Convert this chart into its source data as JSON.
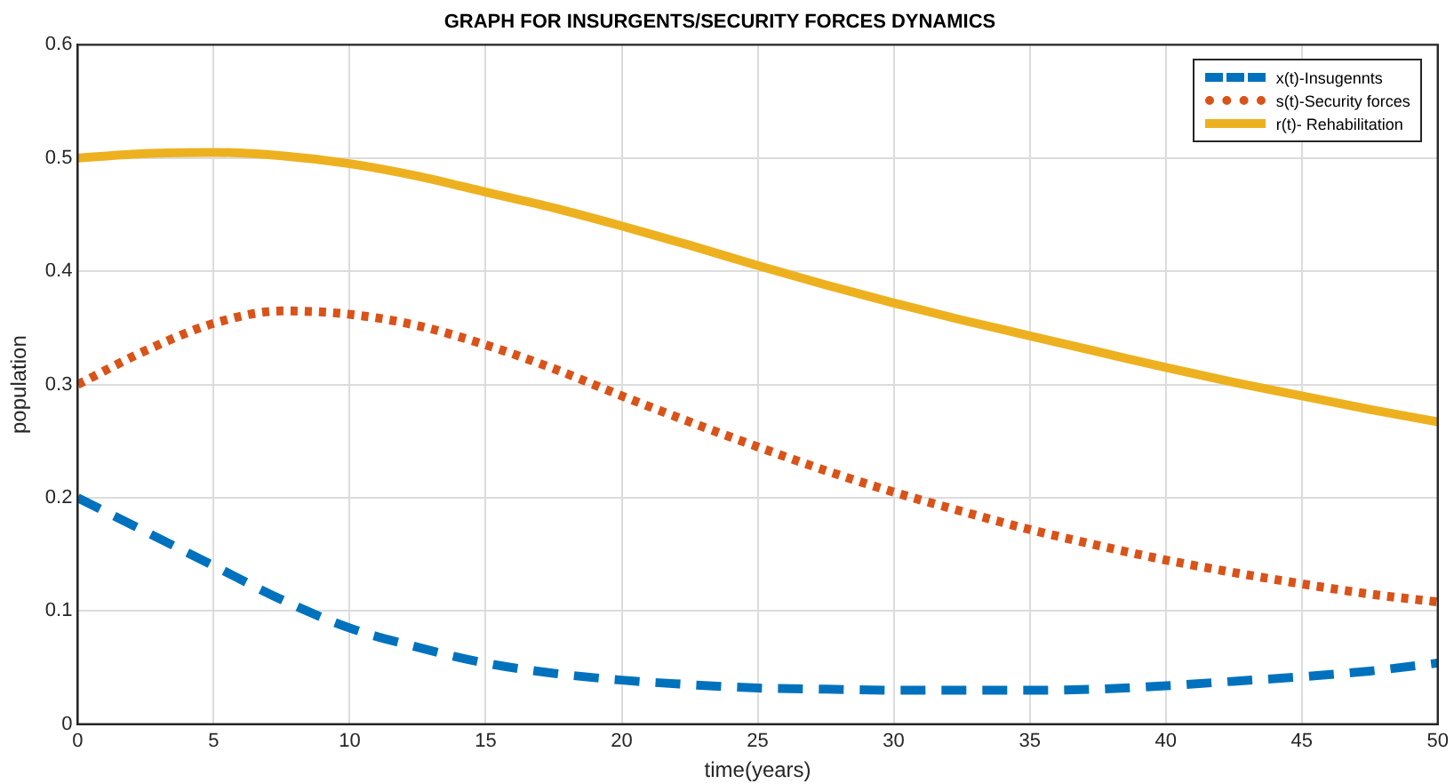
{
  "chart_data": {
    "type": "line",
    "title": "GRAPH FOR INSURGENTS/SECURITY FORCES DYNAMICS",
    "xlabel": "time(years)",
    "ylabel": "population",
    "xlim": [
      0,
      50
    ],
    "xticks": [
      0,
      5,
      10,
      15,
      20,
      25,
      30,
      35,
      40,
      45,
      50
    ],
    "ylim": [
      0,
      0.6
    ],
    "yticks": [
      0,
      0.1,
      0.2,
      0.3,
      0.4,
      0.5,
      0.6
    ],
    "grid": true,
    "legend": "top right",
    "marker": "none",
    "x": [
      0,
      2.5,
      5,
      7.5,
      10,
      12.5,
      15,
      17.5,
      20,
      22.5,
      25,
      27.5,
      30,
      32.5,
      35,
      37.5,
      40,
      42.5,
      45,
      47.5,
      50
    ],
    "series": [
      {
        "name": "x(t)-Insugennts",
        "color": "#0072bd",
        "line_style": "dashed",
        "values": [
          0.2,
          0.17,
          0.14,
          0.11,
          0.085,
          0.068,
          0.054,
          0.045,
          0.039,
          0.035,
          0.032,
          0.031,
          0.03,
          0.03,
          0.03,
          0.031,
          0.034,
          0.038,
          0.042,
          0.047,
          0.054
        ]
      },
      {
        "name": "s(t)-Security forces",
        "color": "#d95319",
        "line_style": "dotted",
        "values": [
          0.3,
          0.33,
          0.354,
          0.365,
          0.362,
          0.352,
          0.335,
          0.314,
          0.29,
          0.267,
          0.245,
          0.224,
          0.205,
          0.188,
          0.172,
          0.158,
          0.145,
          0.134,
          0.124,
          0.115,
          0.108
        ]
      },
      {
        "name": "r(t)- Rehabilitation",
        "color": "#edb120",
        "line_style": "solid",
        "values": [
          0.5,
          0.504,
          0.505,
          0.502,
          0.495,
          0.484,
          0.47,
          0.456,
          0.44,
          0.423,
          0.405,
          0.388,
          0.372,
          0.357,
          0.343,
          0.329,
          0.315,
          0.302,
          0.29,
          0.278,
          0.267
        ]
      }
    ]
  }
}
